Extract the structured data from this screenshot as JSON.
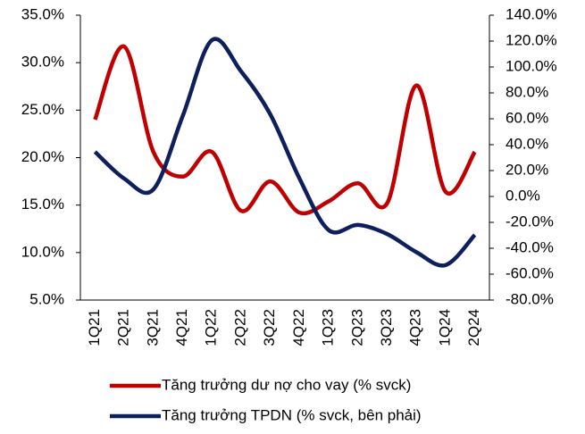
{
  "chart_data": {
    "type": "line",
    "categories": [
      "1Q21",
      "2Q21",
      "3Q21",
      "4Q21",
      "1Q22",
      "2Q22",
      "3Q22",
      "4Q22",
      "1Q23",
      "2Q23",
      "3Q23",
      "4Q23",
      "1Q24",
      "2Q24"
    ],
    "series": [
      {
        "name": "Tăng trưởng dư nợ cho vay (% svck)",
        "color": "#c00000",
        "values": [
          24.0,
          31.7,
          20.6,
          18.0,
          20.6,
          14.4,
          17.5,
          14.2,
          15.4,
          17.3,
          15.2,
          27.6,
          16.4,
          20.6
        ]
      },
      {
        "name": "Tăng trưởng TPDN (% svck, bên phải)",
        "color": "#0d1f5c",
        "axis": "y2",
        "values": [
          34.5,
          13.8,
          5.5,
          62,
          120.7,
          96.6,
          63.4,
          13.8,
          -26,
          -22,
          -29,
          -43,
          -53,
          -29.7
        ]
      }
    ],
    "ylim": [
      5,
      35
    ],
    "yticks": [
      {
        "value": 5,
        "label": "5.0%"
      },
      {
        "value": 10,
        "label": "10.0%"
      },
      {
        "value": 15,
        "label": "15.0%"
      },
      {
        "value": 20,
        "label": "20.0%"
      },
      {
        "value": 25,
        "label": "25.0%"
      },
      {
        "value": 30,
        "label": "30.0%"
      },
      {
        "value": 35,
        "label": "35.0%"
      }
    ],
    "y2lim": [
      -80,
      140
    ],
    "y2ticks": [
      {
        "value": -80,
        "label": "-80.0%"
      },
      {
        "value": -60,
        "label": "-60.0%"
      },
      {
        "value": -40,
        "label": "-40.0%"
      },
      {
        "value": -20,
        "label": "-20.0%"
      },
      {
        "value": 0,
        "label": "0.0%"
      },
      {
        "value": 20,
        "label": "20.0%"
      },
      {
        "value": 40,
        "label": "40.0%"
      },
      {
        "value": 60,
        "label": "60.0%"
      },
      {
        "value": 80,
        "label": "80.0%"
      },
      {
        "value": 100,
        "label": "100.0%"
      },
      {
        "value": 120,
        "label": "120.0%"
      },
      {
        "value": 140,
        "label": "140.0%"
      }
    ],
    "grid": false
  }
}
